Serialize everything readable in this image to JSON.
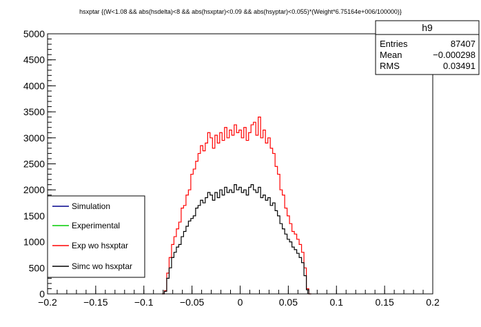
{
  "chart_data": {
    "type": "line",
    "title": "hsxptar {(W<1.08 && abs(hsdelta)<8 && abs(hsxptar)<0.09 && abs(hsyptar)<0.055)*(Weight*6.75164e+006/100000)}",
    "xlabel": "",
    "ylabel": "",
    "xlim": [
      -0.2,
      0.2
    ],
    "ylim": [
      0,
      5000
    ],
    "x_ticks": [
      -0.2,
      -0.15,
      -0.1,
      -0.05,
      0,
      0.05,
      0.1,
      0.15,
      0.2
    ],
    "x_tick_labels": [
      "−0.2",
      "−0.15",
      "−0.1",
      "−0.05",
      "0",
      "0.05",
      "0.1",
      "0.15",
      "0.2"
    ],
    "y_ticks": [
      0,
      500,
      1000,
      1500,
      2000,
      2500,
      3000,
      3500,
      4000,
      4500,
      5000
    ],
    "y_tick_labels": [
      "0",
      "500",
      "1000",
      "1500",
      "2000",
      "2500",
      "3000",
      "3500",
      "4000",
      "4500",
      "5000"
    ],
    "grid": false,
    "legend_position": "bottom-left",
    "stats": {
      "name": "h9",
      "rows": [
        {
          "label": "Entries",
          "value": "87407"
        },
        {
          "label": "Mean",
          "value": "−0.000298"
        },
        {
          "label": "RMS",
          "value": "0.03491"
        }
      ]
    },
    "legend": [
      {
        "label": "Simulation",
        "color": "#00008b"
      },
      {
        "label": "Experimental",
        "color": "#00cc00"
      },
      {
        "label": "Exp wo hsxptar",
        "color": "#ff0000"
      },
      {
        "label": "Simc wo hsxptar",
        "color": "#000000"
      }
    ],
    "series": [
      {
        "color": "#ff0000",
        "x": [
          -0.08,
          -0.0775,
          -0.075,
          -0.0725,
          -0.07,
          -0.0675,
          -0.065,
          -0.0625,
          -0.06,
          -0.0575,
          -0.055,
          -0.0525,
          -0.05,
          -0.0475,
          -0.045,
          -0.0425,
          -0.04,
          -0.0375,
          -0.035,
          -0.0325,
          -0.03,
          -0.0275,
          -0.025,
          -0.0225,
          -0.02,
          -0.0175,
          -0.015,
          -0.0125,
          -0.01,
          -0.0075,
          -0.005,
          -0.0025,
          0.0,
          0.0025,
          0.005,
          0.0075,
          0.01,
          0.0125,
          0.015,
          0.0175,
          0.02,
          0.0225,
          0.025,
          0.0275,
          0.03,
          0.0325,
          0.035,
          0.0375,
          0.04,
          0.0425,
          0.045,
          0.0475,
          0.05,
          0.0525,
          0.055,
          0.0575,
          0.06,
          0.0625,
          0.065,
          0.0675,
          0.07,
          0.0725
        ],
        "values": [
          0,
          60,
          400,
          700,
          950,
          1100,
          1250,
          1380,
          1650,
          1700,
          1900,
          2000,
          2300,
          2400,
          2550,
          2700,
          2850,
          2750,
          2900,
          3100,
          3000,
          2800,
          3050,
          2900,
          3100,
          2950,
          3200,
          3000,
          3150,
          3050,
          3250,
          3100,
          3150,
          3000,
          3200,
          2950,
          3100,
          3250,
          3300,
          3050,
          3400,
          3000,
          3150,
          2900,
          3000,
          2800,
          2700,
          2450,
          2300,
          2000,
          1900,
          1650,
          1500,
          1350,
          1200,
          1150,
          1050,
          950,
          800,
          500,
          100,
          0
        ]
      },
      {
        "color": "#000000",
        "x": [
          -0.08,
          -0.0775,
          -0.075,
          -0.0725,
          -0.07,
          -0.0675,
          -0.065,
          -0.0625,
          -0.06,
          -0.0575,
          -0.055,
          -0.0525,
          -0.05,
          -0.0475,
          -0.045,
          -0.0425,
          -0.04,
          -0.0375,
          -0.035,
          -0.0325,
          -0.03,
          -0.0275,
          -0.025,
          -0.0225,
          -0.02,
          -0.0175,
          -0.015,
          -0.0125,
          -0.01,
          -0.0075,
          -0.005,
          -0.0025,
          0.0,
          0.0025,
          0.005,
          0.0075,
          0.01,
          0.0125,
          0.015,
          0.0175,
          0.02,
          0.0225,
          0.025,
          0.0275,
          0.03,
          0.0325,
          0.035,
          0.0375,
          0.04,
          0.0425,
          0.045,
          0.0475,
          0.05,
          0.0525,
          0.055,
          0.0575,
          0.06,
          0.0625,
          0.065,
          0.0675,
          0.07,
          0.0725
        ],
        "values": [
          0,
          50,
          300,
          500,
          700,
          800,
          900,
          950,
          1100,
          1200,
          1300,
          1400,
          1450,
          1500,
          1650,
          1700,
          1800,
          1750,
          1850,
          1950,
          1900,
          1800,
          1950,
          1850,
          2000,
          1900,
          2050,
          1950,
          2000,
          1950,
          2100,
          2000,
          2050,
          1950,
          2000,
          1900,
          2050,
          2100,
          2000,
          1950,
          2050,
          1850,
          1900,
          1800,
          1850,
          1700,
          1750,
          1600,
          1500,
          1350,
          1250,
          1150,
          1050,
          1000,
          900,
          850,
          780,
          700,
          600,
          350,
          80,
          0
        ]
      }
    ]
  }
}
